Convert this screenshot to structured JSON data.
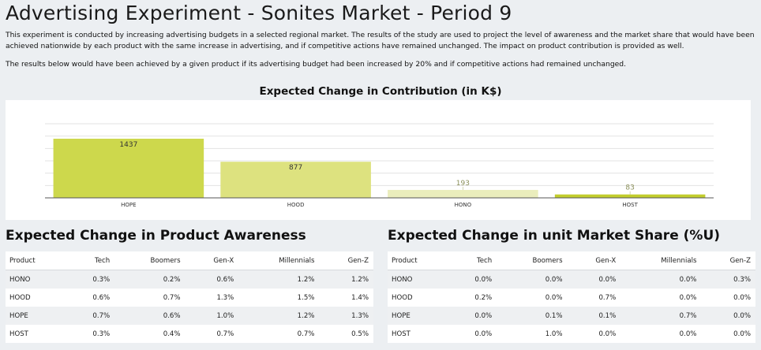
{
  "page": {
    "title": "Advertising Experiment - Sonites Market - Period 9",
    "intro": "This experiment is conducted by increasing advertising budgets in a selected regional market. The results of the study are used to project the level of awareness and the market share that would have been achieved nationwide by each product with the same increase in advertising, and if competitive actions have remained unchanged. The impact on product contribution is provided as well.",
    "note": "The results below would have been achieved by a given product if its advertising budget had been increased by 20% and if competitive actions had remained unchanged."
  },
  "chart_data": {
    "type": "bar",
    "title": "Expected Change in Contribution (in K$)",
    "categories": [
      "HOPE",
      "HOOD",
      "HONO",
      "HOST"
    ],
    "values": [
      1437,
      877,
      193,
      83
    ],
    "colors": [
      "#cdd84c",
      "#dde27f",
      "#eaedbc",
      "#c2cd2d"
    ],
    "ylim": [
      0,
      1800
    ],
    "grid": true
  },
  "awareness": {
    "title": "Expected Change in Product Awareness",
    "columns": [
      "Product",
      "Tech",
      "Boomers",
      "Gen-X",
      "Millennials",
      "Gen-Z"
    ],
    "rows": [
      [
        "HONO",
        "0.3%",
        "0.2%",
        "0.6%",
        "1.2%",
        "1.2%"
      ],
      [
        "HOOD",
        "0.6%",
        "0.7%",
        "1.3%",
        "1.5%",
        "1.4%"
      ],
      [
        "HOPE",
        "0.7%",
        "0.6%",
        "1.0%",
        "1.2%",
        "1.3%"
      ],
      [
        "HOST",
        "0.3%",
        "0.4%",
        "0.7%",
        "0.7%",
        "0.5%"
      ]
    ]
  },
  "market_share": {
    "title": "Expected Change in unit Market Share (%U)",
    "columns": [
      "Product",
      "Tech",
      "Boomers",
      "Gen-X",
      "Millennials",
      "Gen-Z"
    ],
    "rows": [
      [
        "HONO",
        "0.0%",
        "0.0%",
        "0.0%",
        "0.0%",
        "0.3%"
      ],
      [
        "HOOD",
        "0.2%",
        "0.0%",
        "0.7%",
        "0.0%",
        "0.0%"
      ],
      [
        "HOPE",
        "0.0%",
        "0.1%",
        "0.1%",
        "0.7%",
        "0.0%"
      ],
      [
        "HOST",
        "0.0%",
        "1.0%",
        "0.0%",
        "0.0%",
        "0.0%"
      ]
    ]
  }
}
